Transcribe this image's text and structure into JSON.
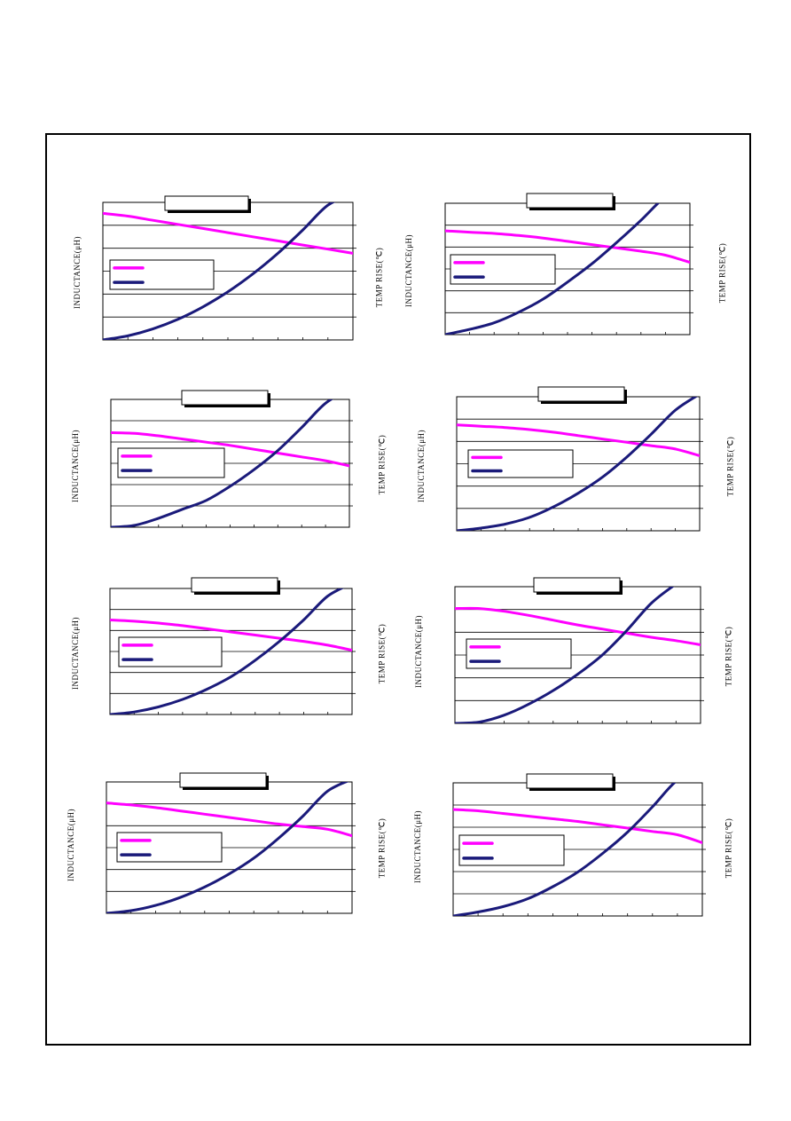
{
  "colors": {
    "inductance": "#ff00ff",
    "temp_rise": "#1a1a7a",
    "frame": "#000000",
    "grid": "#000000"
  },
  "charts": [
    {
      "left_label": "INDUCTANCE(μH)",
      "right_label": "TEMP RISE(℃)",
      "series": [
        {
          "name": "",
          "color": "#ff00ff"
        },
        {
          "name": "",
          "color": "#1a1a7a"
        }
      ]
    },
    {
      "left_label": "INDUCTANCE(μH)",
      "right_label": "TEMP RISE(℃)",
      "series": [
        {
          "name": "",
          "color": "#ff00ff"
        },
        {
          "name": "",
          "color": "#1a1a7a"
        }
      ]
    },
    {
      "left_label": "INDUCTANCE(μH)",
      "right_label": "TEMP RISE(℃)",
      "series": [
        {
          "name": "",
          "color": "#ff00ff"
        },
        {
          "name": "",
          "color": "#1a1a7a"
        }
      ]
    },
    {
      "left_label": "INDUCTANCE(μH)",
      "right_label": "TEMP RISE(℃)",
      "series": [
        {
          "name": "",
          "color": "#ff00ff"
        },
        {
          "name": "",
          "color": "#1a1a7a"
        }
      ]
    },
    {
      "left_label": "INDUCTANCE(μH)",
      "right_label": "TEMP RISE(℃)",
      "series": [
        {
          "name": "",
          "color": "#ff00ff"
        },
        {
          "name": "",
          "color": "#1a1a7a"
        }
      ]
    },
    {
      "left_label": "INDUCTANCE(μH)",
      "right_label": "TEMP RISE(℃)",
      "series": [
        {
          "name": "",
          "color": "#ff00ff"
        },
        {
          "name": "",
          "color": "#1a1a7a"
        }
      ]
    },
    {
      "left_label": "INDUCTANCE(μH)",
      "right_label": "TEMP RISE(℃)",
      "series": [
        {
          "name": "",
          "color": "#ff00ff"
        },
        {
          "name": "",
          "color": "#1a1a7a"
        }
      ]
    },
    {
      "left_label": "INDUCTANCE(μH)",
      "right_label": "TEMP RISE(℃)",
      "series": [
        {
          "name": "",
          "color": "#ff00ff"
        },
        {
          "name": "",
          "color": "#1a1a7a"
        }
      ]
    }
  ],
  "chart_data": [
    {
      "type": "line",
      "title": "",
      "xlabel": "",
      "ylabel": "INDUCTANCE(μH)",
      "y2label": "TEMP RISE(℃)",
      "x": [
        0,
        0.1,
        0.2,
        0.3,
        0.4,
        0.5,
        0.6,
        0.7,
        0.8,
        0.9,
        1.0
      ],
      "xlim": [
        0,
        1
      ],
      "ylim": [
        0,
        1
      ],
      "grid": true,
      "legend": "left",
      "series": [
        {
          "name": "",
          "axis": "left",
          "values": [
            0.92,
            0.9,
            0.87,
            0.84,
            0.81,
            0.78,
            0.75,
            0.72,
            0.69,
            0.66,
            0.63
          ]
        },
        {
          "name": "",
          "axis": "right",
          "values": [
            0.0,
            0.03,
            0.08,
            0.15,
            0.24,
            0.35,
            0.48,
            0.63,
            0.8,
            0.98,
            1.06
          ]
        }
      ]
    },
    {
      "type": "line",
      "title": "",
      "xlabel": "",
      "ylabel": "INDUCTANCE(μH)",
      "y2label": "TEMP RISE(℃)",
      "x": [
        0,
        0.1,
        0.2,
        0.3,
        0.4,
        0.5,
        0.6,
        0.7,
        0.8,
        0.9,
        1.0
      ],
      "xlim": [
        0,
        1
      ],
      "ylim": [
        0,
        1
      ],
      "grid": true,
      "legend": "left",
      "series": [
        {
          "name": "",
          "axis": "left",
          "values": [
            0.79,
            0.78,
            0.77,
            0.755,
            0.735,
            0.71,
            0.685,
            0.66,
            0.635,
            0.605,
            0.55
          ]
        },
        {
          "name": "",
          "axis": "right",
          "values": [
            0.0,
            0.04,
            0.09,
            0.17,
            0.27,
            0.4,
            0.54,
            0.7,
            0.87,
            1.05,
            1.15
          ]
        }
      ]
    },
    {
      "type": "line",
      "title": "",
      "xlabel": "",
      "ylabel": "INDUCTANCE(μH)",
      "y2label": "TEMP RISE(℃)",
      "x": [
        0,
        0.1,
        0.2,
        0.3,
        0.4,
        0.5,
        0.6,
        0.7,
        0.8,
        0.9,
        1.0
      ],
      "xlim": [
        0,
        1
      ],
      "ylim": [
        0,
        1
      ],
      "grid": true,
      "legend": "left",
      "series": [
        {
          "name": "",
          "axis": "left",
          "values": [
            0.74,
            0.735,
            0.715,
            0.69,
            0.665,
            0.64,
            0.61,
            0.58,
            0.55,
            0.52,
            0.48
          ]
        },
        {
          "name": "",
          "axis": "right",
          "values": [
            0.0,
            0.015,
            0.07,
            0.14,
            0.21,
            0.32,
            0.45,
            0.6,
            0.78,
            0.97,
            1.08
          ]
        }
      ]
    },
    {
      "type": "line",
      "title": "",
      "xlabel": "",
      "ylabel": "INDUCTANCE(μH)",
      "y2label": "TEMP RISE(℃)",
      "x": [
        0,
        0.1,
        0.2,
        0.3,
        0.4,
        0.5,
        0.6,
        0.7,
        0.8,
        0.9,
        1.0
      ],
      "xlim": [
        0,
        1
      ],
      "ylim": [
        0,
        1
      ],
      "grid": true,
      "legend": "left",
      "series": [
        {
          "name": "",
          "axis": "left",
          "values": [
            0.79,
            0.78,
            0.77,
            0.755,
            0.735,
            0.71,
            0.685,
            0.66,
            0.635,
            0.61,
            0.56
          ]
        },
        {
          "name": "",
          "axis": "right",
          "values": [
            0.0,
            0.02,
            0.05,
            0.1,
            0.18,
            0.28,
            0.4,
            0.55,
            0.72,
            0.9,
            1.02
          ]
        }
      ]
    },
    {
      "type": "line",
      "title": "",
      "xlabel": "",
      "ylabel": "INDUCTANCE(μH)",
      "y2label": "TEMP RISE(℃)",
      "x": [
        0,
        0.1,
        0.2,
        0.3,
        0.4,
        0.5,
        0.6,
        0.7,
        0.8,
        0.9,
        1.0
      ],
      "xlim": [
        0,
        1
      ],
      "ylim": [
        0,
        1
      ],
      "grid": true,
      "legend": "left",
      "series": [
        {
          "name": "",
          "axis": "left",
          "values": [
            0.75,
            0.74,
            0.725,
            0.705,
            0.68,
            0.655,
            0.63,
            0.605,
            0.58,
            0.55,
            0.51
          ]
        },
        {
          "name": "",
          "axis": "right",
          "values": [
            0.0,
            0.02,
            0.06,
            0.12,
            0.2,
            0.3,
            0.43,
            0.58,
            0.75,
            0.94,
            1.04
          ]
        }
      ]
    },
    {
      "type": "line",
      "title": "",
      "xlabel": "",
      "ylabel": "INDUCTANCE(μH)",
      "y2label": "TEMP RISE(℃)",
      "x": [
        0,
        0.1,
        0.2,
        0.3,
        0.4,
        0.5,
        0.6,
        0.7,
        0.8,
        0.9,
        1.0
      ],
      "xlim": [
        0,
        1
      ],
      "ylim": [
        0,
        1
      ],
      "grid": true,
      "legend": "left",
      "series": [
        {
          "name": "",
          "axis": "left",
          "values": [
            0.84,
            0.84,
            0.82,
            0.79,
            0.755,
            0.72,
            0.69,
            0.66,
            0.63,
            0.605,
            0.575
          ]
        },
        {
          "name": "",
          "axis": "right",
          "values": [
            0.0,
            0.01,
            0.06,
            0.14,
            0.24,
            0.36,
            0.5,
            0.68,
            0.88,
            1.02,
            1.15
          ]
        }
      ]
    },
    {
      "type": "line",
      "title": "",
      "xlabel": "",
      "ylabel": "INDUCTANCE(μH)",
      "y2label": "TEMP RISE(℃)",
      "x": [
        0,
        0.1,
        0.2,
        0.3,
        0.4,
        0.5,
        0.6,
        0.7,
        0.8,
        0.9,
        1.0
      ],
      "xlim": [
        0,
        1
      ],
      "ylim": [
        0,
        1
      ],
      "grid": true,
      "legend": "left",
      "series": [
        {
          "name": "",
          "axis": "left",
          "values": [
            0.84,
            0.825,
            0.805,
            0.78,
            0.755,
            0.73,
            0.705,
            0.68,
            0.66,
            0.64,
            0.59
          ]
        },
        {
          "name": "",
          "axis": "right",
          "values": [
            0.0,
            0.02,
            0.06,
            0.12,
            0.2,
            0.3,
            0.42,
            0.57,
            0.74,
            0.93,
            1.02
          ]
        }
      ]
    },
    {
      "type": "line",
      "title": "",
      "xlabel": "",
      "ylabel": "INDUCTANCE(μH)",
      "y2label": "TEMP RISE(℃)",
      "x": [
        0,
        0.1,
        0.2,
        0.3,
        0.4,
        0.5,
        0.6,
        0.7,
        0.8,
        0.9,
        1.0
      ],
      "xlim": [
        0,
        1
      ],
      "ylim": [
        0,
        1
      ],
      "grid": true,
      "legend": "left",
      "series": [
        {
          "name": "",
          "axis": "left",
          "values": [
            0.8,
            0.79,
            0.77,
            0.75,
            0.73,
            0.71,
            0.685,
            0.66,
            0.635,
            0.61,
            0.55
          ]
        },
        {
          "name": "",
          "axis": "right",
          "values": [
            0.0,
            0.03,
            0.07,
            0.13,
            0.22,
            0.33,
            0.47,
            0.63,
            0.82,
            1.02,
            1.1
          ]
        }
      ]
    }
  ]
}
